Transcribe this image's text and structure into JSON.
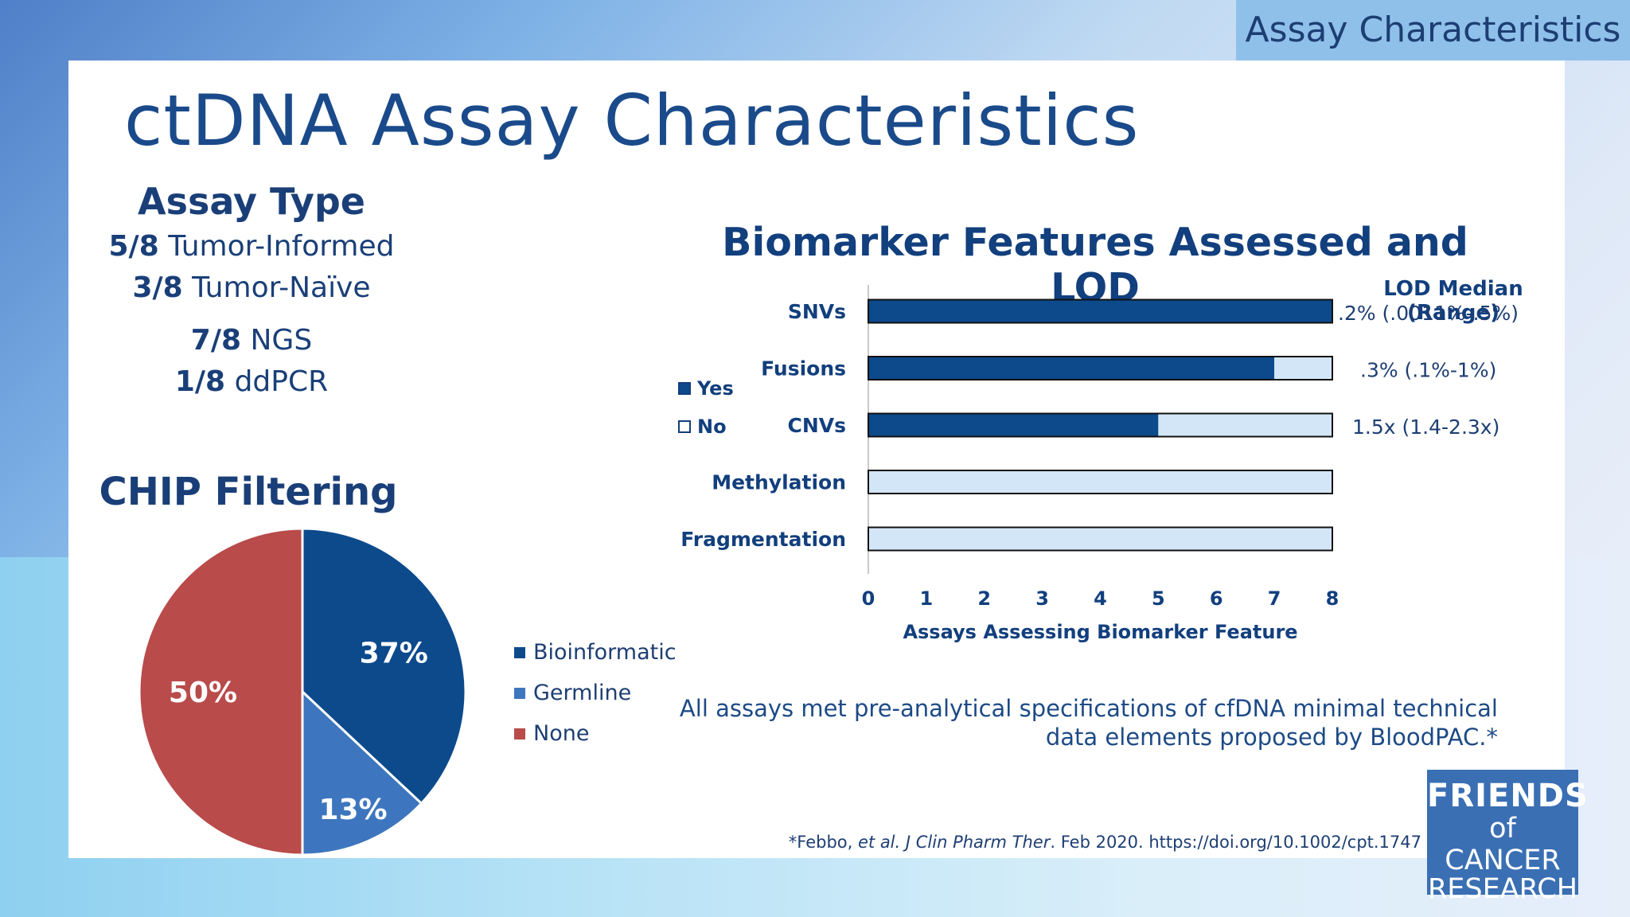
{
  "tag_label": "Assay Characteristics",
  "title": "ctDNA Assay Characteristics",
  "assay_type": {
    "heading": "Assay Type",
    "rows": [
      {
        "count": "5/8",
        "label": "Tumor-Informed"
      },
      {
        "count": "3/8",
        "label": "Tumor-Naïve"
      },
      {
        "count": "7/8",
        "label": "NGS"
      },
      {
        "count": "1/8",
        "label": "ddPCR"
      }
    ]
  },
  "colors": {
    "navy": "#0c4a8c",
    "light_bar": "#d3e6f7",
    "germline": "#3d76be",
    "none": "#b94b4b",
    "text_dark": "#123f7d"
  },
  "chart_data": [
    {
      "type": "pie",
      "title": "CHIP Filtering",
      "slices": [
        {
          "label": "Bioinformatic",
          "value": 37,
          "display": "37%",
          "color": "#0c4a8c"
        },
        {
          "label": "Germline",
          "value": 13,
          "display": "13%",
          "color": "#3d76be"
        },
        {
          "label": "None",
          "value": 50,
          "display": "50%",
          "color": "#b94b4b"
        }
      ],
      "legend_position": "right"
    },
    {
      "type": "bar",
      "orientation": "horizontal",
      "stacked": true,
      "title": "Biomarker Features Assessed and LOD",
      "categories": [
        "SNVs",
        "Fusions",
        "CNVs",
        "Methylation",
        "Fragmentation"
      ],
      "series": [
        {
          "name": "Yes",
          "values": [
            8,
            7,
            5,
            0,
            0
          ],
          "color": "#0c4a8c"
        },
        {
          "name": "No",
          "values": [
            0,
            1,
            3,
            8,
            8
          ],
          "color": "#d3e6f7"
        }
      ],
      "xlabel": "Assays Assessing Biomarker Feature",
      "ylabel": "",
      "xlim": [
        0,
        8
      ],
      "xticks": [
        0,
        1,
        2,
        3,
        4,
        5,
        6,
        7,
        8
      ],
      "legend_position": "left",
      "grid": false,
      "annotations_header": "LOD Median (Range)",
      "annotations": [
        ".2% (.0011%-.5%)",
        ".3% (.1%-1%)",
        "1.5x (1.4-2.3x)",
        "",
        ""
      ]
    }
  ],
  "note": "All assays met pre-analytical specifications of cfDNA minimal technical data elements proposed by BloodPAC.*",
  "citation": {
    "prefix": "*Febbo, ",
    "etal": "et al.",
    "journal": " J Clin Pharm Ther",
    "rest": ". Feb 2020. https://doi.org/10.1002/cpt.1747"
  },
  "logo": {
    "line1": "FRIENDS",
    "line2": "of CANCER",
    "line3": "RESEARCH"
  }
}
